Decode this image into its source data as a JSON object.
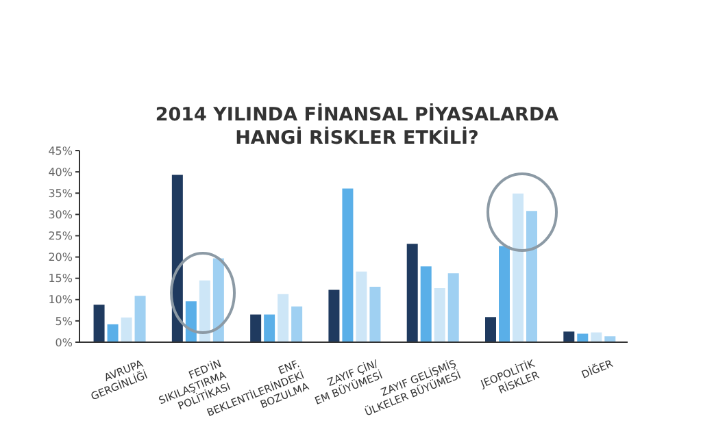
{
  "chart_data": {
    "type": "bar",
    "title": "2014 YILINDA FİNANSAL PİYASALARDA\nHANGİ RİSKLER ETKİLİ?",
    "categories": [
      "AVRUPA\nGERGİNLİĞİ",
      "FED'İN\nSIKILAŞTIRMA\nPOLİTİKASI",
      "ENF.\nBEKLENTİLERİNDEKİ\nBOZULMA",
      "ZAYIF ÇİN/\nEM BÜYÜMESİ",
      "ZAYIF GELİŞMİŞ\nÜLKELER BÜYÜMESİ",
      "JEOPOLİTİK\nRİSKLER",
      "DİĞER"
    ],
    "series": [
      {
        "color": "#1f3a5f",
        "values": [
          8.8,
          39.3,
          6.5,
          12.3,
          23.1,
          5.9,
          2.5
        ]
      },
      {
        "color": "#5aafe8",
        "values": [
          4.2,
          9.6,
          6.5,
          36.1,
          17.8,
          22.6,
          2.0
        ]
      },
      {
        "color": "#cde6f7",
        "values": [
          5.8,
          14.5,
          11.3,
          16.6,
          12.7,
          34.9,
          2.3
        ]
      },
      {
        "color": "#9fd0f2",
        "values": [
          10.9,
          19.7,
          8.4,
          13.0,
          16.2,
          30.8,
          1.4
        ]
      }
    ],
    "ylim": [
      0,
      45
    ],
    "yticks": [
      {
        "value": 0,
        "label": "0%"
      },
      {
        "value": 5,
        "label": "5%"
      },
      {
        "value": 10,
        "label": "10%"
      },
      {
        "value": 15,
        "label": "15%"
      },
      {
        "value": 20,
        "label": "20%"
      },
      {
        "value": 25,
        "label": "25%"
      },
      {
        "value": 30,
        "label": "30%"
      },
      {
        "value": 35,
        "label": "35%"
      },
      {
        "value": 40,
        "label": "40%"
      },
      {
        "value": 45,
        "label": "45%"
      }
    ],
    "grid": false,
    "legend": false
  }
}
